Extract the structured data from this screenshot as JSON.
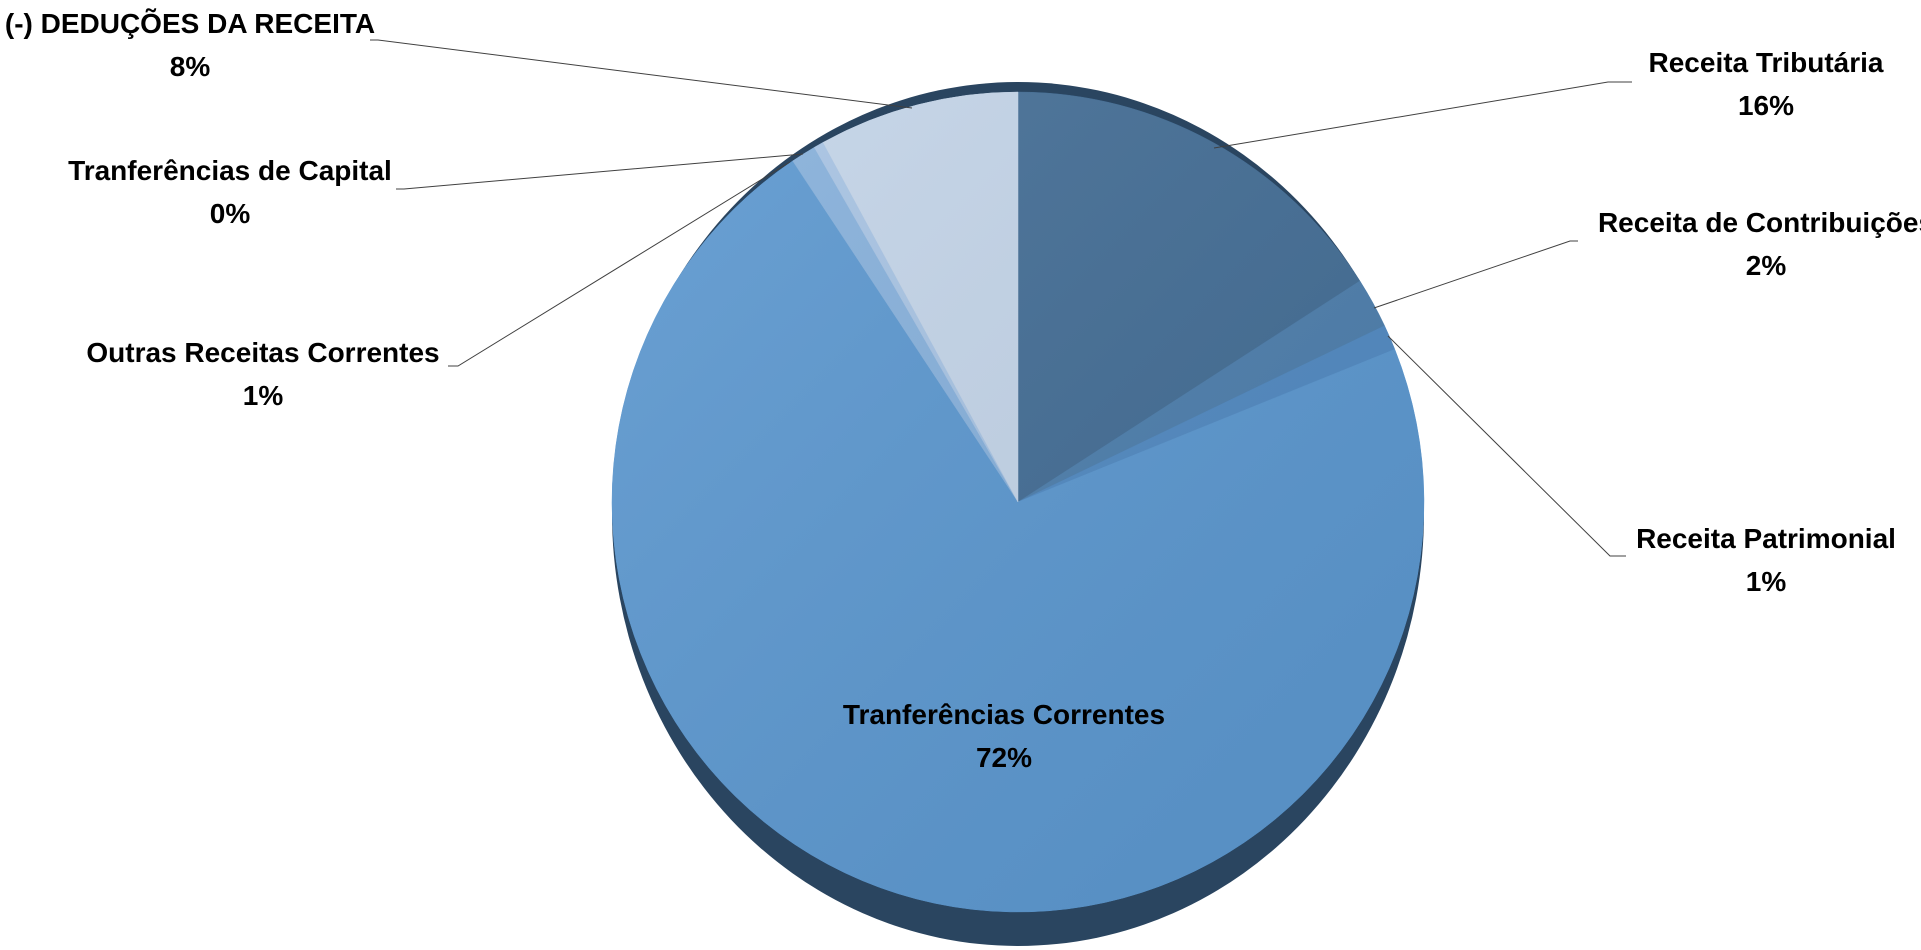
{
  "chart_data": {
    "type": "pie",
    "title": "",
    "start_angle_deg": 0,
    "direction": "clockwise",
    "slices": [
      {
        "name": "Receita Tributária",
        "value": 16,
        "label": "16%",
        "color": "#436d95"
      },
      {
        "name": "Receita de Contribuições",
        "value": 2,
        "label": "2%",
        "color": "#4d7eac"
      },
      {
        "name": "Receita Patrimonial",
        "value": 1,
        "label": "1%",
        "color": "#5189c1"
      },
      {
        "name": "Tranferências Correntes",
        "value": 72,
        "label": "72%",
        "color": "#5b97cf"
      },
      {
        "name": "Outras Receitas Correntes",
        "value": 1,
        "label": "1%",
        "color": "#86b0db"
      },
      {
        "name": "Tranferências de Capital",
        "value": 0.4,
        "label": "0%",
        "color": "#a7c3e3"
      },
      {
        "name": "(-) DEDUÇÕES DA RECEITA",
        "value": 8,
        "label": "8%",
        "color": "#c3d4e8"
      }
    ]
  }
}
